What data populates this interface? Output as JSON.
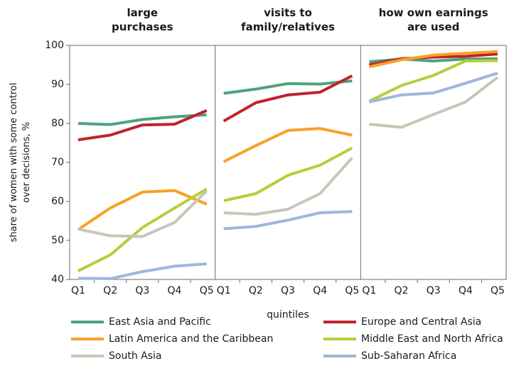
{
  "chart_data": {
    "type": "line",
    "ylabel": [
      "share of women with some control",
      "over decisions, %"
    ],
    "xlabel": "quintiles",
    "ylim": [
      40,
      100
    ],
    "yticks": [
      40,
      50,
      60,
      70,
      80,
      90,
      100
    ],
    "panels": [
      {
        "title": [
          "large",
          "purchases"
        ],
        "categories": [
          "Q1",
          "Q2",
          "Q3",
          "Q4",
          "Q5"
        ]
      },
      {
        "title": [
          "visits to",
          "family/relatives"
        ],
        "categories": [
          "Q1",
          "Q2",
          "Q3",
          "Q4",
          "Q5"
        ]
      },
      {
        "title": [
          "how own earnings",
          "are used"
        ],
        "categories": [
          "Q1",
          "Q2",
          "Q3",
          "Q4",
          "Q5"
        ]
      }
    ],
    "series": [
      {
        "name": "East Asia and Pacific",
        "color": "#4ca37c",
        "values": [
          [
            80,
            79.7,
            81,
            81.7,
            82.2
          ],
          [
            87.7,
            88.8,
            90.2,
            90.1,
            90.9
          ],
          [
            95.8,
            96.5,
            96,
            96.5,
            96.6
          ]
        ]
      },
      {
        "name": "Europe and Central Asia",
        "color": "#c0222b",
        "values": [
          [
            75.8,
            77,
            79.6,
            79.8,
            83.3
          ],
          [
            80.6,
            85.3,
            87.3,
            88,
            92.2
          ],
          [
            95,
            96.6,
            97,
            97.2,
            97.8
          ]
        ]
      },
      {
        "name": "Latin America and the Caribbean",
        "color": "#f7a128",
        "values": [
          [
            52.8,
            58.3,
            62.4,
            62.8,
            59.3
          ],
          [
            70.2,
            74.3,
            78.2,
            78.7,
            77
          ],
          [
            94.5,
            96.3,
            97.5,
            98,
            98.4
          ]
        ]
      },
      {
        "name": "Middle East and North Africa",
        "color": "#b5cf3a",
        "values": [
          [
            42.2,
            46.3,
            53.3,
            58.3,
            63.2
          ],
          [
            60.2,
            62,
            66.7,
            69.3,
            73.7
          ],
          [
            85.7,
            89.7,
            92.3,
            96,
            96.1
          ]
        ]
      },
      {
        "name": "South Asia",
        "color": "#c9c6b8",
        "values": [
          [
            52.9,
            51.2,
            51,
            54.6,
            62.7
          ],
          [
            57.1,
            56.7,
            58,
            62,
            71.2
          ],
          [
            79.8,
            79,
            82.3,
            85.5,
            91.8
          ]
        ]
      },
      {
        "name": "Sub-Saharan Africa",
        "color": "#9fb6dc",
        "values": [
          [
            40.3,
            40.2,
            42,
            43.4,
            44
          ],
          [
            53,
            53.6,
            55.2,
            57.1,
            57.4
          ],
          [
            85.5,
            87.3,
            87.8,
            90.3,
            92.9
          ]
        ]
      }
    ]
  }
}
